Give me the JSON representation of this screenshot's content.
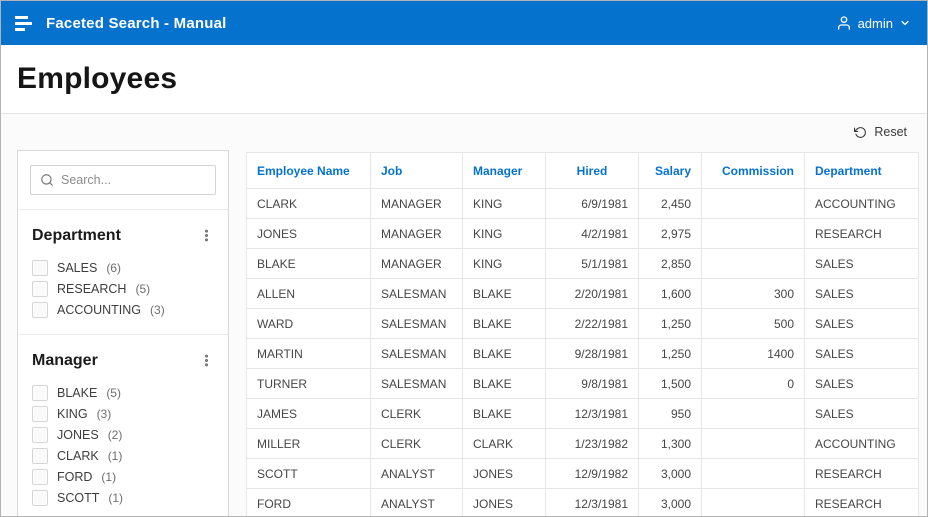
{
  "header": {
    "app_title": "Faceted Search - Manual",
    "user_label": "admin"
  },
  "page": {
    "title": "Employees"
  },
  "toolbar": {
    "reset_label": "Reset"
  },
  "facets": {
    "search_placeholder": "Search...",
    "groups": [
      {
        "title": "Department",
        "items": [
          {
            "label": "SALES",
            "count": "(6)"
          },
          {
            "label": "RESEARCH",
            "count": "(5)"
          },
          {
            "label": "ACCOUNTING",
            "count": "(3)"
          }
        ]
      },
      {
        "title": "Manager",
        "items": [
          {
            "label": "BLAKE",
            "count": "(5)"
          },
          {
            "label": "KING",
            "count": "(3)"
          },
          {
            "label": "JONES",
            "count": "(2)"
          },
          {
            "label": "CLARK",
            "count": "(1)"
          },
          {
            "label": "FORD",
            "count": "(1)"
          },
          {
            "label": "SCOTT",
            "count": "(1)"
          }
        ]
      }
    ]
  },
  "table": {
    "columns": [
      "Employee Name",
      "Job",
      "Manager",
      "Hired",
      "Salary",
      "Commission",
      "Department"
    ],
    "rows": [
      [
        "CLARK",
        "MANAGER",
        "KING",
        "6/9/1981",
        "2,450",
        "",
        "ACCOUNTING"
      ],
      [
        "JONES",
        "MANAGER",
        "KING",
        "4/2/1981",
        "2,975",
        "",
        "RESEARCH"
      ],
      [
        "BLAKE",
        "MANAGER",
        "KING",
        "5/1/1981",
        "2,850",
        "",
        "SALES"
      ],
      [
        "ALLEN",
        "SALESMAN",
        "BLAKE",
        "2/20/1981",
        "1,600",
        "300",
        "SALES"
      ],
      [
        "WARD",
        "SALESMAN",
        "BLAKE",
        "2/22/1981",
        "1,250",
        "500",
        "SALES"
      ],
      [
        "MARTIN",
        "SALESMAN",
        "BLAKE",
        "9/28/1981",
        "1,250",
        "1400",
        "SALES"
      ],
      [
        "TURNER",
        "SALESMAN",
        "BLAKE",
        "9/8/1981",
        "1,500",
        "0",
        "SALES"
      ],
      [
        "JAMES",
        "CLERK",
        "BLAKE",
        "12/3/1981",
        "950",
        "",
        "SALES"
      ],
      [
        "MILLER",
        "CLERK",
        "CLARK",
        "1/23/1982",
        "1,300",
        "",
        "ACCOUNTING"
      ],
      [
        "SCOTT",
        "ANALYST",
        "JONES",
        "12/9/1982",
        "3,000",
        "",
        "RESEARCH"
      ],
      [
        "FORD",
        "ANALYST",
        "JONES",
        "12/3/1981",
        "3,000",
        "",
        "RESEARCH"
      ]
    ]
  },
  "colors": {
    "header_blue": "#0572ce",
    "column_header_blue": "#0572ce"
  }
}
